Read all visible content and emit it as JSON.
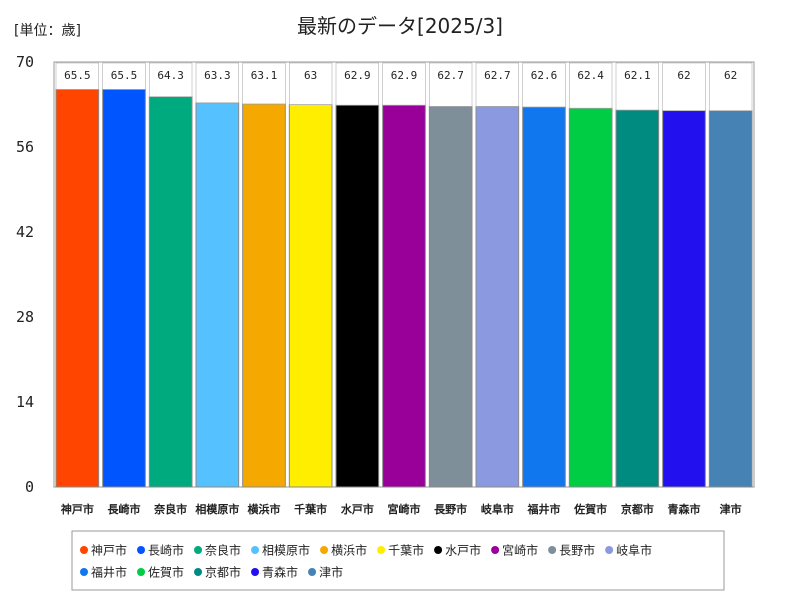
{
  "chart_data": {
    "type": "bar",
    "title": "最新のデータ[2025/3]",
    "unit_label": "[単位：歳]",
    "xlabel": "",
    "ylabel": "",
    "ylim": [
      0,
      70
    ],
    "yticks": [
      0,
      14,
      28,
      42,
      56,
      70
    ],
    "grid": false,
    "legend_position": "bottom",
    "categories": [
      "神戸市",
      "長崎市",
      "奈良市",
      "相模原市",
      "横浜市",
      "千葉市",
      "水戸市",
      "宮崎市",
      "長野市",
      "岐阜市",
      "福井市",
      "佐賀市",
      "京都市",
      "青森市",
      "津市"
    ],
    "values": [
      65.5,
      65.5,
      64.3,
      63.3,
      63.1,
      63,
      62.9,
      62.9,
      62.7,
      62.7,
      62.6,
      62.4,
      62.1,
      62,
      62
    ],
    "value_labels": [
      "65.5",
      "65.5",
      "64.3",
      "63.3",
      "63.1",
      "63",
      "62.9",
      "62.9",
      "62.7",
      "62.7",
      "62.6",
      "62.4",
      "62.1",
      "62",
      "62"
    ],
    "colors": [
      "#ff4500",
      "#0055ff",
      "#00aa7f",
      "#55c2ff",
      "#f5a800",
      "#ffee00",
      "#000000",
      "#990099",
      "#7f8f9a",
      "#8b99e0",
      "#1177ee",
      "#00cc44",
      "#008b80",
      "#2211ee",
      "#4682b4"
    ]
  }
}
